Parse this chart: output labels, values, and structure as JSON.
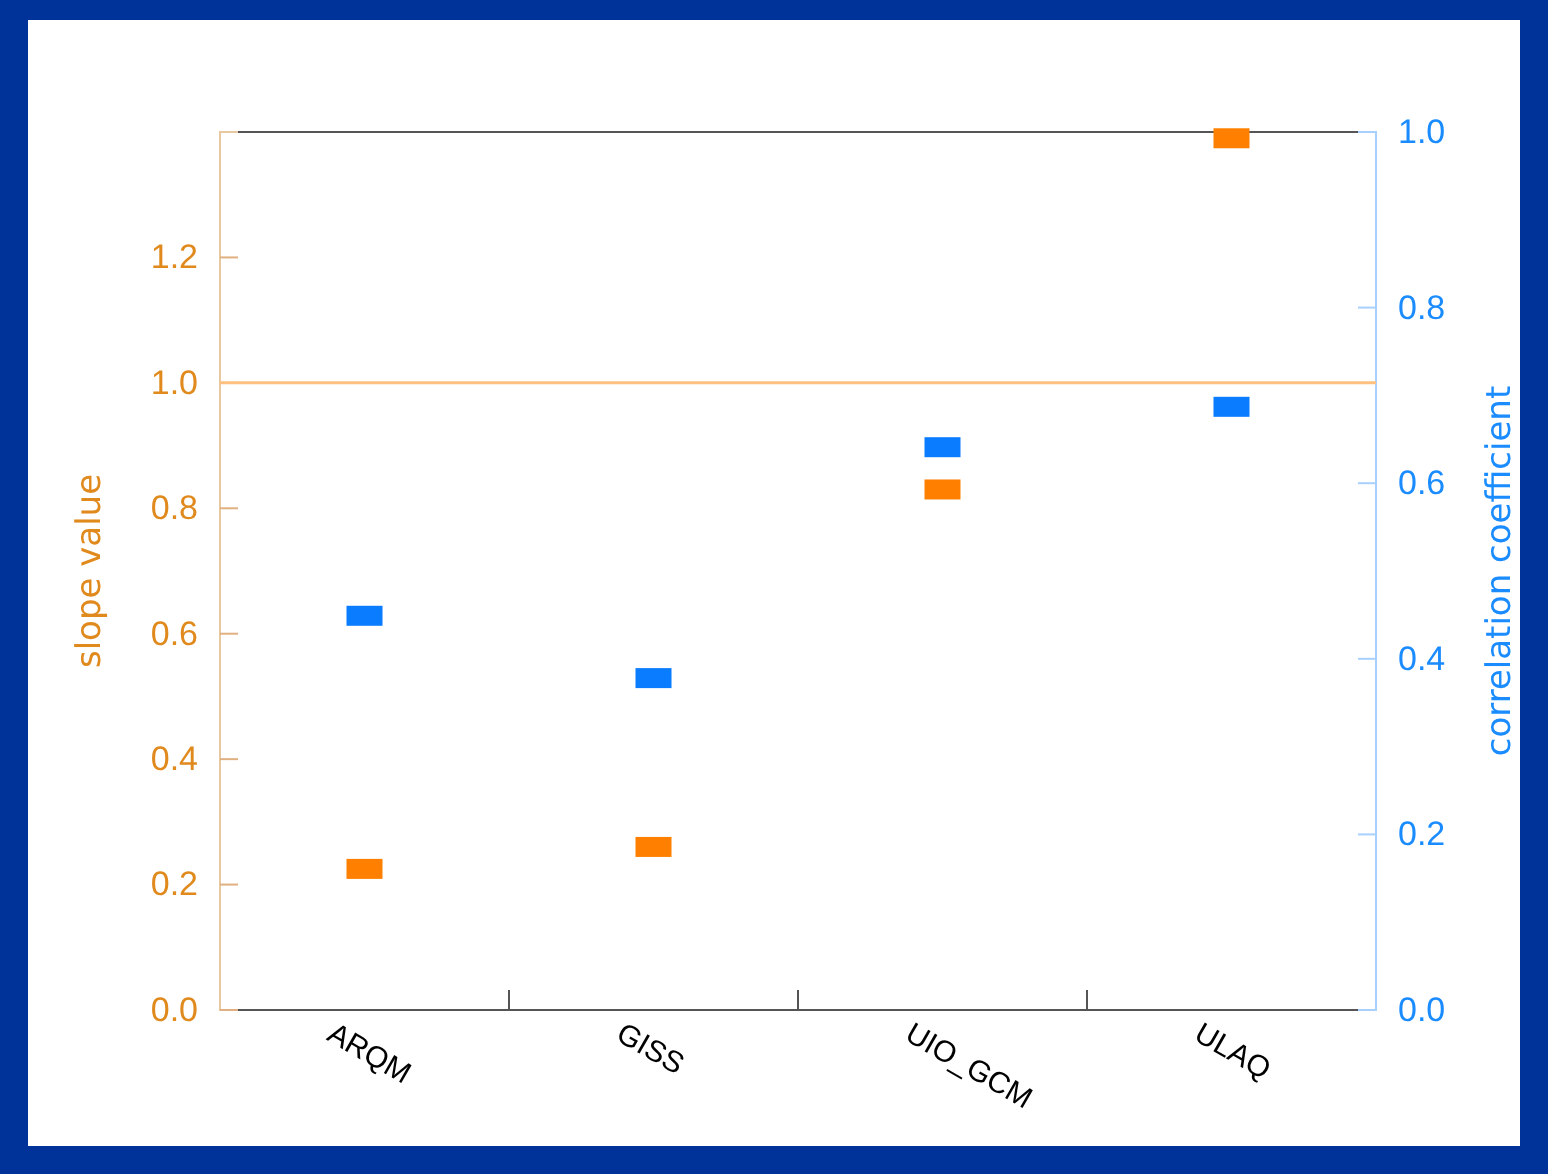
{
  "chart_data": {
    "type": "scatter",
    "categories": [
      "ARQM",
      "GISS",
      "UIO_GCM",
      "ULAQ"
    ],
    "series": [
      {
        "color": "#ff8000",
        "values": [
          0.225,
          0.26,
          0.83,
          1.39
        ]
      },
      {
        "color": "#0a7cff",
        "axis": "y2",
        "values": [
          0.449,
          0.378,
          0.641,
          0.687
        ]
      }
    ],
    "ylabel": "slope value",
    "y2label": "correlation coefficient",
    "ylim": [
      0,
      1.4
    ],
    "yticks": [
      {
        "value": 0,
        "label": "0.0"
      },
      0.2,
      0.4,
      0.6,
      0.8,
      {
        "value": 1,
        "label": "1.0"
      },
      1.2
    ],
    "y2lim": [
      0,
      1.0
    ],
    "y2ticks": [
      {
        "value": 0,
        "label": "0.0"
      },
      0.2,
      0.4,
      0.6,
      0.8,
      {
        "value": 1,
        "label": "1.0"
      }
    ],
    "ref_lines": [
      {
        "axis": "y",
        "value": 1.0,
        "color": "#ffc080"
      }
    ],
    "marker": "square",
    "grid": false
  }
}
